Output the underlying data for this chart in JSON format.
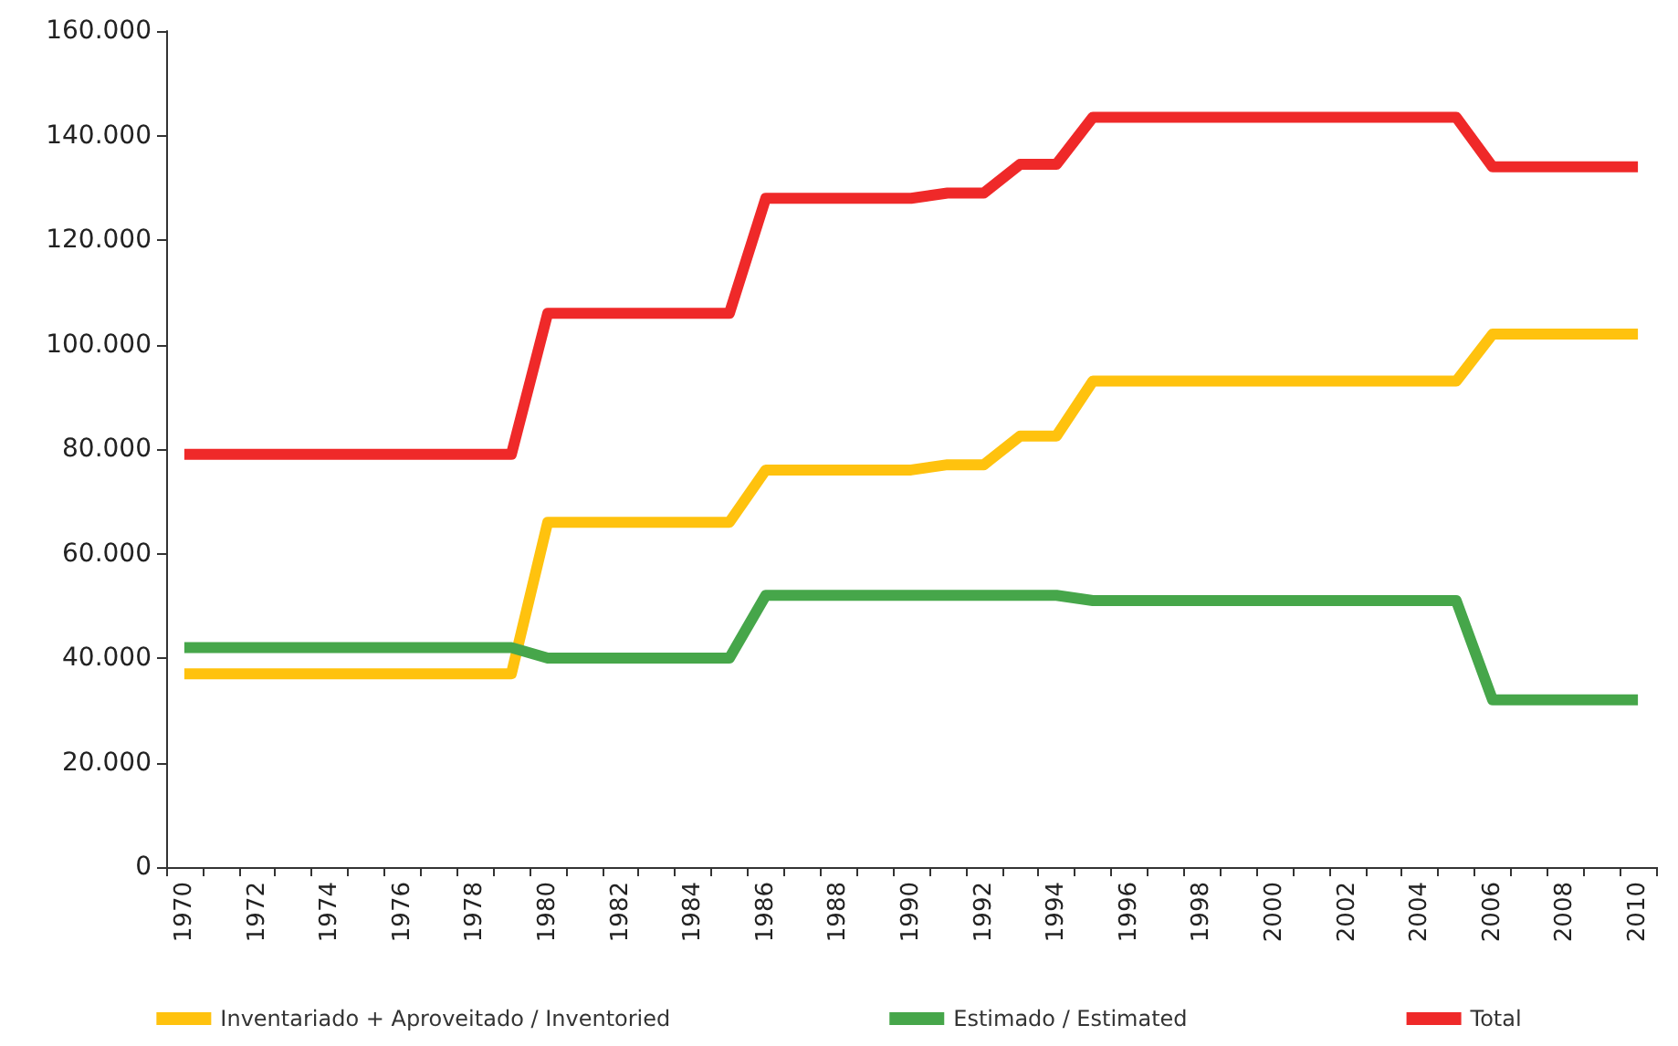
{
  "chart_data": {
    "type": "line",
    "categories": [
      "1970",
      null,
      "1972",
      null,
      "1974",
      null,
      "1976",
      null,
      "1978",
      null,
      "1980",
      null,
      "1982",
      null,
      "1984",
      null,
      "1986",
      null,
      "1988",
      null,
      "1990",
      null,
      "1992",
      null,
      "1994",
      null,
      "1996",
      null,
      "1998",
      null,
      "2000",
      null,
      "2002",
      null,
      "2004",
      null,
      "2006",
      null,
      "2008",
      null,
      "2010"
    ],
    "series": [
      {
        "name": "Inventariado + Aproveitado / Inventoried",
        "color": "#ffc20e",
        "values": [
          37000,
          37000,
          37000,
          37000,
          37000,
          37000,
          37000,
          37000,
          37000,
          37000,
          66000,
          66000,
          66000,
          66000,
          66000,
          66000,
          76000,
          76000,
          76000,
          76000,
          76000,
          77000,
          77000,
          82500,
          82500,
          93000,
          93000,
          93000,
          93000,
          93000,
          93000,
          93000,
          93000,
          93000,
          93000,
          93000,
          102000,
          102000,
          102000,
          102000,
          102000
        ]
      },
      {
        "name": "Estimado / Estimated",
        "color": "#46a64a",
        "values": [
          42000,
          42000,
          42000,
          42000,
          42000,
          42000,
          42000,
          42000,
          42000,
          42000,
          40000,
          40000,
          40000,
          40000,
          40000,
          40000,
          52000,
          52000,
          52000,
          52000,
          52000,
          52000,
          52000,
          52000,
          52000,
          51000,
          51000,
          51000,
          51000,
          51000,
          51000,
          51000,
          51000,
          51000,
          51000,
          51000,
          32000,
          32000,
          32000,
          32000,
          32000
        ]
      },
      {
        "name": "Total",
        "color": "#ef2929",
        "values": [
          79000,
          79000,
          79000,
          79000,
          79000,
          79000,
          79000,
          79000,
          79000,
          79000,
          106000,
          106000,
          106000,
          106000,
          106000,
          106000,
          128000,
          128000,
          128000,
          128000,
          128000,
          129000,
          129000,
          134500,
          134500,
          143500,
          143500,
          143500,
          143500,
          143500,
          143500,
          143500,
          143500,
          143500,
          143500,
          143500,
          134000,
          134000,
          134000,
          134000,
          134000
        ]
      }
    ],
    "ylim": [
      0,
      160000
    ],
    "yticks": [
      0,
      {
        "value": 20000,
        "label": "20.000"
      },
      {
        "value": 40000,
        "label": "40.000"
      },
      {
        "value": 60000,
        "label": "60.000"
      },
      {
        "value": 80000,
        "label": "80.000"
      },
      {
        "value": 100000,
        "label": "100.000"
      },
      {
        "value": 120000,
        "label": "120.000"
      },
      {
        "value": 140000,
        "label": "140.000"
      },
      {
        "value": 160000,
        "label": "160.000"
      }
    ],
    "grid": false,
    "legend": "bottom",
    "marker": "none",
    "line_style": "solid"
  }
}
